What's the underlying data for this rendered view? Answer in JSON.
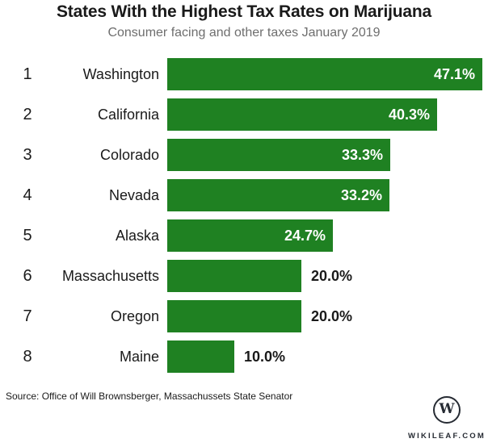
{
  "header": {
    "title": "States With the Highest Tax Rates on Marijuana",
    "subtitle": "Consumer facing and other taxes January 2019"
  },
  "chart_data": {
    "type": "bar",
    "orientation": "horizontal",
    "title": "States With the Highest Tax Rates on Marijuana",
    "subtitle": "Consumer facing and other taxes January 2019",
    "unit": "percent",
    "xlim": [
      0,
      50
    ],
    "grid": false,
    "legend": false,
    "bar_color": "#1f8122",
    "categories": [
      "Washington",
      "California",
      "Colorado",
      "Nevada",
      "Alaska",
      "Massachusetts",
      "Oregon",
      "Maine"
    ],
    "values": [
      47.1,
      40.3,
      33.3,
      33.2,
      24.7,
      20.0,
      20.0,
      10.0
    ],
    "rows": [
      {
        "rank": "1",
        "state": "Washington",
        "value": 47.1,
        "label": "47.1%",
        "label_position": "inside"
      },
      {
        "rank": "2",
        "state": "California",
        "value": 40.3,
        "label": "40.3%",
        "label_position": "inside"
      },
      {
        "rank": "3",
        "state": "Colorado",
        "value": 33.3,
        "label": "33.3%",
        "label_position": "inside"
      },
      {
        "rank": "4",
        "state": "Nevada",
        "value": 33.2,
        "label": "33.2%",
        "label_position": "inside"
      },
      {
        "rank": "5",
        "state": "Alaska",
        "value": 24.7,
        "label": "24.7%",
        "label_position": "inside"
      },
      {
        "rank": "6",
        "state": "Massachusetts",
        "value": 20.0,
        "label": "20.0%",
        "label_position": "outside"
      },
      {
        "rank": "7",
        "state": "Oregon",
        "value": 20.0,
        "label": "20.0%",
        "label_position": "outside"
      },
      {
        "rank": "8",
        "state": "Maine",
        "value": 10.0,
        "label": "10.0%",
        "label_position": "outside"
      }
    ]
  },
  "footer": {
    "source": "Source: Office of Will Brownsberger, Massachussets State Senator",
    "logo": {
      "monogram": "W",
      "site": "WIKILEAF.COM"
    }
  },
  "colors": {
    "bar_green": "#1f8122",
    "title_text": "#1a1a1a",
    "subtitle_text": "#6e6e6e",
    "value_inside": "#ffffff",
    "value_outside": "#1a1a1a",
    "logo_ink": "#262b33"
  }
}
